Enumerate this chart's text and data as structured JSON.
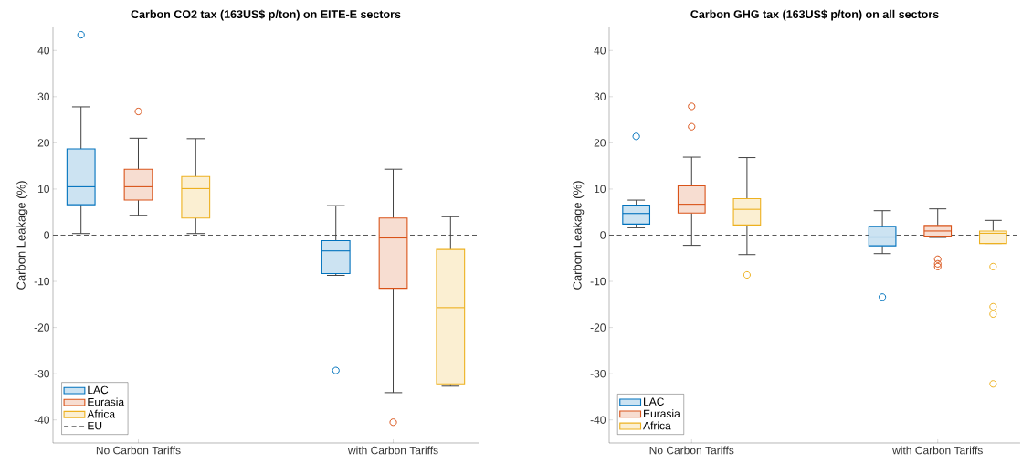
{
  "chart_data": [
    {
      "type": "box",
      "title": "Carbon CO2 tax (163US$ p/ton) on EITE-E sectors",
      "ylabel": "Carbon Leakage (%)",
      "categories": [
        "No Carbon Tariffs",
        "with Carbon Tariffs"
      ],
      "ylim": [
        -45,
        45
      ],
      "yticks": [
        -40,
        -30,
        -20,
        -10,
        0,
        10,
        20,
        30,
        40
      ],
      "legend": "bottom left",
      "marker": "circle",
      "series": [
        {
          "name": "LAC",
          "color": "#0072bd",
          "boxes": [
            {
              "low": 0.35,
              "q1": 6.6,
              "median": 10.5,
              "q3": 18.7,
              "high": 27.8,
              "outliers": [
                43.4
              ]
            },
            {
              "low": -8.7,
              "q1": -8.3,
              "median": -3.4,
              "q3": -1.2,
              "high": 6.4,
              "outliers": [
                -29.3
              ]
            }
          ]
        },
        {
          "name": "Eurasia",
          "color": "#d95319",
          "boxes": [
            {
              "low": 4.3,
              "q1": 7.6,
              "median": 10.5,
              "q3": 14.3,
              "high": 21,
              "outliers": [
                26.8
              ]
            },
            {
              "low": -34.1,
              "q1": -11.5,
              "median": -0.6,
              "q3": 3.7,
              "high": 14.3,
              "outliers": [
                -40.5
              ]
            }
          ]
        },
        {
          "name": "Africa",
          "color": "#edb120",
          "boxes": [
            {
              "low": 0.35,
              "q1": 3.7,
              "median": 10.1,
              "q3": 12.7,
              "high": 20.9
            },
            {
              "low": -32.7,
              "q1": -32.2,
              "median": -15.7,
              "q3": -3.1,
              "high": 4.0
            }
          ]
        }
      ],
      "ref_lines": [
        {
          "axis": "y",
          "value": 0,
          "label": "EU",
          "color": "#555555",
          "line_style": "dashed"
        }
      ]
    },
    {
      "type": "box",
      "title": "Carbon GHG tax (163US$ p/ton) on all sectors",
      "ylabel": "Carbon Leakage (%)",
      "categories": [
        "No Carbon Tariffs",
        "with Carbon Tariffs"
      ],
      "ylim": [
        -45,
        45
      ],
      "yticks": [
        -40,
        -30,
        -20,
        -10,
        0,
        10,
        20,
        30,
        40
      ],
      "legend": "bottom left",
      "marker": "circle",
      "series": [
        {
          "name": "LAC",
          "color": "#0072bd",
          "boxes": [
            {
              "low": 1.6,
              "q1": 2.4,
              "median": 4.7,
              "q3": 6.5,
              "high": 7.6,
              "outliers": [
                21.4
              ]
            },
            {
              "low": -4.0,
              "q1": -2.3,
              "median": -0.4,
              "q3": 1.9,
              "high": 5.3,
              "outliers": [
                -13.4
              ]
            }
          ]
        },
        {
          "name": "Eurasia",
          "color": "#d95319",
          "boxes": [
            {
              "low": -2.2,
              "q1": 4.8,
              "median": 6.7,
              "q3": 10.7,
              "high": 16.9,
              "outliers": [
                27.9,
                23.5
              ]
            },
            {
              "low": -0.5,
              "q1": -0.2,
              "median": 0.9,
              "q3": 2.1,
              "high": 5.7,
              "outliers": [
                -5.2,
                -6.2,
                -6.8
              ]
            }
          ]
        },
        {
          "name": "Africa",
          "color": "#edb120",
          "boxes": [
            {
              "low": -4.2,
              "q1": 2.2,
              "median": 5.6,
              "q3": 7.9,
              "high": 16.8,
              "outliers": [
                -8.6
              ]
            },
            {
              "low": -1.8,
              "q1": -1.8,
              "median": 0.4,
              "q3": 0.9,
              "high": 3.2,
              "outliers": [
                -6.8,
                -15.5,
                -17.1,
                -32.2
              ]
            }
          ]
        }
      ],
      "ref_lines": [
        {
          "axis": "y",
          "value": 0,
          "color": "#555555",
          "line_style": "dashed"
        }
      ]
    }
  ]
}
